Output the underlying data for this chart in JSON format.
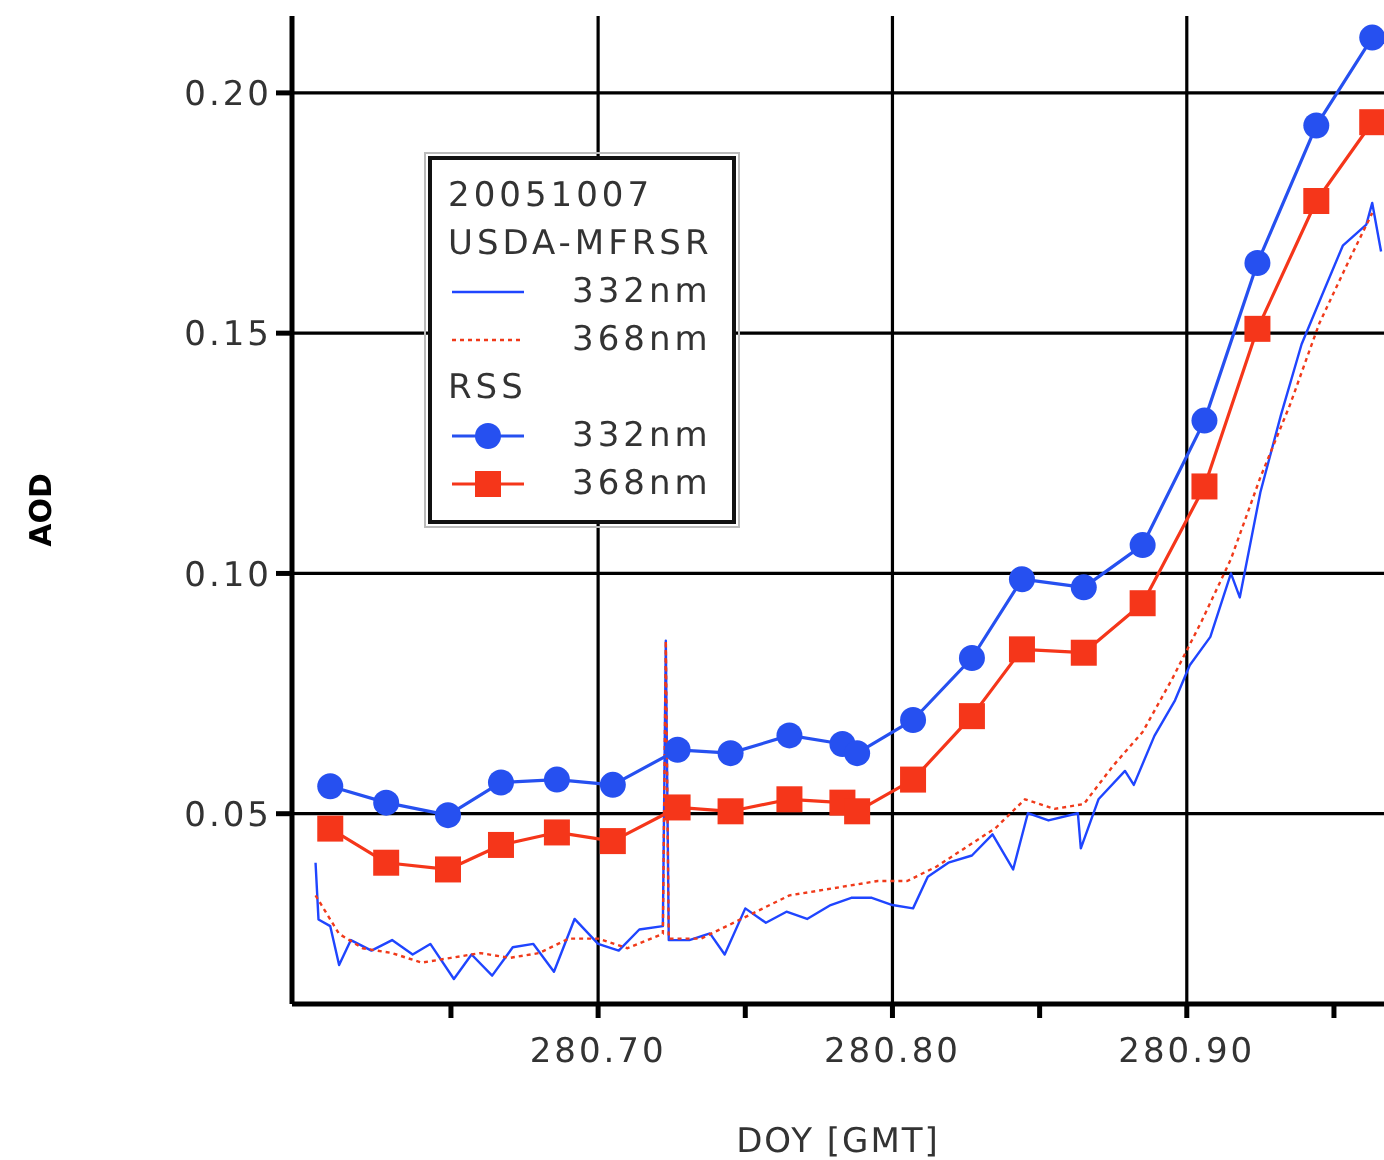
{
  "chart_data": {
    "type": "line",
    "xlabel": "DOY  [GMT]",
    "ylabel": "AOD",
    "legend_title": "20051007",
    "annotations": [
      "USDA-MFRSR",
      "RSS"
    ],
    "xlim": [
      280.596,
      280.967
    ],
    "ylim": [
      0.0104,
      0.216
    ],
    "xticks": [
      {
        "value": 280.65,
        "label": null
      },
      {
        "value": 280.7,
        "label": "280.70"
      },
      {
        "value": 280.75,
        "label": null
      },
      {
        "value": 280.8,
        "label": "280.80"
      },
      {
        "value": 280.85,
        "label": null
      },
      {
        "value": 280.9,
        "label": "280.90"
      },
      {
        "value": 280.95,
        "label": null
      }
    ],
    "yticks": [
      {
        "value": 0.05,
        "label": "0.05"
      },
      {
        "value": 0.1,
        "label": "0.10"
      },
      {
        "value": 0.15,
        "label": "0.15"
      },
      {
        "value": 0.2,
        "label": "0.20"
      }
    ],
    "grid": true,
    "legend": "top left",
    "series": [
      {
        "name": "332nm",
        "color": "#1f45ff",
        "marker": "none",
        "line_style": "solid",
        "x": [
          280.604,
          280.605,
          280.609,
          280.612,
          280.616,
          280.623,
          280.63,
          280.637,
          280.643,
          280.651,
          280.657,
          280.664,
          280.671,
          280.678,
          280.685,
          280.692,
          280.7,
          280.707,
          280.714,
          280.722,
          280.723,
          280.724,
          280.731,
          280.738,
          280.743,
          280.75,
          280.757,
          280.764,
          280.771,
          280.779,
          280.786,
          280.793,
          280.8,
          280.807,
          280.812,
          280.819,
          280.827,
          280.834,
          280.841,
          280.846,
          280.853,
          280.863,
          280.864,
          280.87,
          280.879,
          280.882,
          280.889,
          280.896,
          280.901,
          280.908,
          280.915,
          280.918,
          280.925,
          280.932,
          280.939,
          280.946,
          280.953,
          280.961,
          280.963,
          280.966
        ],
        "values": [
          0.0398,
          0.028,
          0.0266,
          0.0185,
          0.0237,
          0.0215,
          0.0237,
          0.0207,
          0.0229,
          0.0156,
          0.0207,
          0.0163,
          0.0222,
          0.0229,
          0.0171,
          0.0281,
          0.0229,
          0.0215,
          0.0259,
          0.0266,
          0.086,
          0.0237,
          0.0237,
          0.0251,
          0.0207,
          0.0303,
          0.0273,
          0.0296,
          0.0281,
          0.031,
          0.0325,
          0.0325,
          0.031,
          0.0303,
          0.0369,
          0.0398,
          0.0413,
          0.0457,
          0.0384,
          0.0501,
          0.0486,
          0.0501,
          0.0428,
          0.053,
          0.0589,
          0.056,
          0.0662,
          0.0736,
          0.0809,
          0.0868,
          0.1,
          0.095,
          0.1169,
          0.133,
          0.1477,
          0.158,
          0.1682,
          0.1726,
          0.1771,
          0.167
        ]
      },
      {
        "name": "368nm",
        "color": "#f03a1a",
        "marker": "none",
        "line_style": "dotted",
        "x": [
          280.604,
          280.607,
          280.612,
          280.62,
          280.63,
          280.64,
          280.65,
          280.66,
          280.67,
          280.68,
          280.69,
          280.7,
          280.71,
          280.722,
          280.723,
          280.724,
          280.735,
          280.745,
          280.755,
          280.765,
          280.775,
          280.785,
          280.795,
          280.805,
          280.815,
          280.825,
          280.835,
          280.845,
          280.855,
          280.865,
          280.875,
          280.885,
          280.895,
          280.905,
          280.915,
          280.925,
          280.935,
          280.945,
          280.955,
          280.963
        ],
        "values": [
          0.033,
          0.03,
          0.025,
          0.022,
          0.021,
          0.019,
          0.02,
          0.021,
          0.02,
          0.021,
          0.024,
          0.024,
          0.022,
          0.025,
          0.086,
          0.024,
          0.024,
          0.027,
          0.03,
          0.033,
          0.034,
          0.035,
          0.036,
          0.036,
          0.039,
          0.043,
          0.047,
          0.053,
          0.051,
          0.052,
          0.06,
          0.067,
          0.078,
          0.09,
          0.103,
          0.12,
          0.135,
          0.152,
          0.165,
          0.175
        ]
      },
      {
        "name": "332nm",
        "color": "#2650f0",
        "marker": "circle",
        "line_style": "solid",
        "x": [
          280.609,
          280.628,
          280.649,
          280.667,
          280.686,
          280.705,
          280.727,
          280.745,
          280.765,
          280.783,
          280.788,
          280.807,
          280.827,
          280.844,
          280.865,
          280.885,
          280.906,
          280.924,
          280.944,
          280.963
        ],
        "values": [
          0.0557,
          0.0523,
          0.0497,
          0.0565,
          0.0571,
          0.056,
          0.0633,
          0.0626,
          0.0663,
          0.0645,
          0.0626,
          0.0695,
          0.0824,
          0.0988,
          0.0971,
          0.1059,
          0.1318,
          0.1646,
          0.1932,
          0.2115
        ]
      },
      {
        "name": "368nm",
        "color": "#f5361a",
        "marker": "square",
        "line_style": "solid",
        "x": [
          280.609,
          280.628,
          280.649,
          280.667,
          280.686,
          280.705,
          280.727,
          280.745,
          280.765,
          280.783,
          280.788,
          280.807,
          280.827,
          280.844,
          280.865,
          280.885,
          280.906,
          280.924,
          280.944,
          280.963
        ],
        "values": [
          0.0469,
          0.0398,
          0.0384,
          0.0435,
          0.0461,
          0.0443,
          0.0513,
          0.0505,
          0.053,
          0.0523,
          0.0505,
          0.0571,
          0.0703,
          0.0842,
          0.0835,
          0.0938,
          0.1181,
          0.1509,
          0.1775,
          0.1939
        ]
      }
    ]
  }
}
